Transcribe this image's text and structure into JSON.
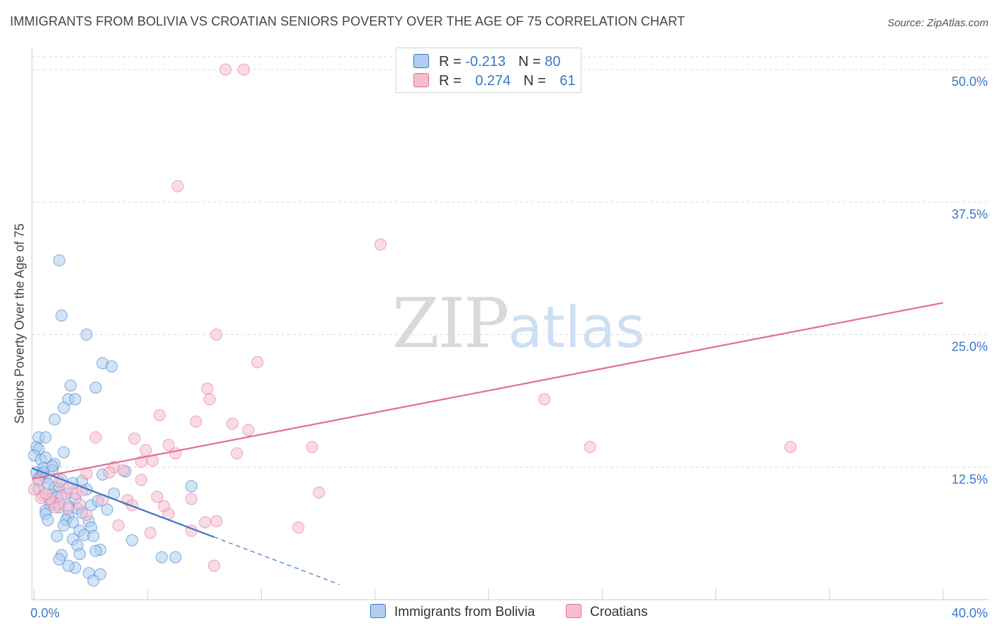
{
  "title": "IMMIGRANTS FROM BOLIVIA VS CROATIAN SENIORS POVERTY OVER THE AGE OF 75 CORRELATION CHART",
  "source": "Source: ZipAtlas.com",
  "watermark": {
    "zip": "ZIP",
    "atlas": "atlas"
  },
  "colors": {
    "blue": "#3a78c9",
    "blue_fill": "#aecdf0",
    "pink": "#e26e96",
    "pink_fill": "#f6bdd0",
    "grid": "#dddddd",
    "tick_label": "#3a78c9"
  },
  "legend": {
    "rows": [
      {
        "r_label": "R = ",
        "r_value": "-0.213",
        "n_label": "N = ",
        "n_value": "80"
      },
      {
        "r_label": "R = ",
        "r_value": "0.274",
        "n_label": "N = ",
        "n_value": "61"
      }
    ]
  },
  "chart_data": {
    "type": "scatter",
    "title": "IMMIGRANTS FROM BOLIVIA VS CROATIAN SENIORS POVERTY OVER THE AGE OF 75 CORRELATION CHART",
    "xlabel": "",
    "ylabel": "Seniors Poverty Over the Age of 75",
    "xlim": [
      0,
      40
    ],
    "ylim": [
      0,
      50
    ],
    "x_tick_labels": [
      "0.0%",
      "40.0%"
    ],
    "y_ticks": [
      12.5,
      25.0,
      37.5,
      50.0
    ],
    "y_tick_labels": [
      "12.5%",
      "25.0%",
      "37.5%",
      "50.0%"
    ],
    "grid": true,
    "legend_position": "top-center",
    "series": [
      {
        "name": "Immigrants from Bolivia",
        "color": "#3a78c9",
        "r": -0.213,
        "n": 80,
        "trend": {
          "x0": 0,
          "y0": 12.4,
          "x1": 8,
          "y1": 5.9,
          "dash_to_x": 13.5
        },
        "points": [
          [
            1.2,
            32.0
          ],
          [
            1.3,
            26.8
          ],
          [
            2.4,
            25.0
          ],
          [
            3.1,
            22.3
          ],
          [
            3.5,
            22.0
          ],
          [
            1.7,
            20.2
          ],
          [
            2.8,
            20.0
          ],
          [
            1.6,
            18.9
          ],
          [
            1.9,
            18.9
          ],
          [
            1.4,
            18.1
          ],
          [
            1.0,
            17.0
          ],
          [
            0.3,
            15.3
          ],
          [
            0.6,
            15.3
          ],
          [
            0.2,
            14.4
          ],
          [
            0.3,
            14.2
          ],
          [
            1.4,
            13.9
          ],
          [
            0.1,
            13.6
          ],
          [
            0.4,
            13.2
          ],
          [
            0.6,
            13.4
          ],
          [
            1.0,
            12.8
          ],
          [
            0.5,
            12.4
          ],
          [
            0.9,
            12.2
          ],
          [
            0.2,
            12.0
          ],
          [
            0.4,
            11.8
          ],
          [
            0.6,
            11.5
          ],
          [
            0.3,
            11.4
          ],
          [
            3.1,
            11.8
          ],
          [
            4.1,
            12.1
          ],
          [
            1.8,
            11.0
          ],
          [
            0.7,
            10.9
          ],
          [
            1.0,
            10.6
          ],
          [
            0.3,
            10.4
          ],
          [
            1.2,
            10.5
          ],
          [
            2.4,
            10.4
          ],
          [
            3.6,
            10.0
          ],
          [
            1.5,
            10.0
          ],
          [
            0.9,
            9.9
          ],
          [
            1.1,
            9.7
          ],
          [
            1.9,
            9.5
          ],
          [
            0.8,
            8.9
          ],
          [
            1.2,
            8.7
          ],
          [
            1.6,
            8.8
          ],
          [
            2.0,
            8.6
          ],
          [
            2.6,
            8.9
          ],
          [
            0.6,
            8.4
          ],
          [
            3.3,
            8.5
          ],
          [
            2.2,
            8.2
          ],
          [
            0.6,
            8.1
          ],
          [
            1.6,
            7.9
          ],
          [
            0.7,
            7.5
          ],
          [
            1.5,
            7.5
          ],
          [
            2.5,
            7.4
          ],
          [
            1.8,
            7.3
          ],
          [
            1.4,
            7.0
          ],
          [
            2.6,
            6.8
          ],
          [
            2.1,
            6.5
          ],
          [
            2.3,
            6.1
          ],
          [
            2.7,
            6.0
          ],
          [
            1.1,
            6.0
          ],
          [
            1.8,
            5.7
          ],
          [
            4.4,
            5.6
          ],
          [
            2.0,
            5.1
          ],
          [
            3.0,
            4.7
          ],
          [
            2.8,
            4.6
          ],
          [
            1.3,
            4.2
          ],
          [
            2.1,
            4.3
          ],
          [
            7.0,
            10.7
          ],
          [
            5.7,
            4.0
          ],
          [
            6.3,
            4.0
          ],
          [
            1.2,
            3.8
          ],
          [
            1.9,
            3.0
          ],
          [
            2.5,
            2.5
          ],
          [
            3.0,
            2.4
          ],
          [
            2.7,
            1.8
          ],
          [
            1.6,
            3.2
          ],
          [
            0.9,
            12.6
          ],
          [
            2.2,
            11.2
          ],
          [
            0.5,
            12.0
          ],
          [
            1.3,
            11.3
          ],
          [
            2.9,
            9.3
          ]
        ]
      },
      {
        "name": "Croatians",
        "color": "#e26e96",
        "r": 0.274,
        "n": 61,
        "trend": {
          "x0": 0,
          "y0": 11.4,
          "x1": 40,
          "y1": 28.0
        },
        "points": [
          [
            8.5,
            50.0
          ],
          [
            9.3,
            50.0
          ],
          [
            6.4,
            39.0
          ],
          [
            15.3,
            33.5
          ],
          [
            8.1,
            25.0
          ],
          [
            9.9,
            22.4
          ],
          [
            7.7,
            19.9
          ],
          [
            7.8,
            18.9
          ],
          [
            22.5,
            18.9
          ],
          [
            5.6,
            17.4
          ],
          [
            7.2,
            16.8
          ],
          [
            8.8,
            16.6
          ],
          [
            9.5,
            16.0
          ],
          [
            2.8,
            15.3
          ],
          [
            4.5,
            15.2
          ],
          [
            6.0,
            14.6
          ],
          [
            12.3,
            14.4
          ],
          [
            24.5,
            14.4
          ],
          [
            33.3,
            14.4
          ],
          [
            5.0,
            14.1
          ],
          [
            6.3,
            13.8
          ],
          [
            9.0,
            13.8
          ],
          [
            4.8,
            13.0
          ],
          [
            3.6,
            12.5
          ],
          [
            5.3,
            13.1
          ],
          [
            4.0,
            12.2
          ],
          [
            2.4,
            11.9
          ],
          [
            3.4,
            12.0
          ],
          [
            4.8,
            11.3
          ],
          [
            1.2,
            11.1
          ],
          [
            0.3,
            11.2
          ],
          [
            0.1,
            10.4
          ],
          [
            12.6,
            10.1
          ],
          [
            0.5,
            9.8
          ],
          [
            1.3,
            9.8
          ],
          [
            1.9,
            10.0
          ],
          [
            5.5,
            9.7
          ],
          [
            4.2,
            9.4
          ],
          [
            3.1,
            9.4
          ],
          [
            7.0,
            9.5
          ],
          [
            0.9,
            9.2
          ],
          [
            0.4,
            9.6
          ],
          [
            2.1,
            9.0
          ],
          [
            1.2,
            9.0
          ],
          [
            1.6,
            8.6
          ],
          [
            4.4,
            8.9
          ],
          [
            5.8,
            8.8
          ],
          [
            2.4,
            8.0
          ],
          [
            6.0,
            8.1
          ],
          [
            1.0,
            8.7
          ],
          [
            3.8,
            7.0
          ],
          [
            7.6,
            7.3
          ],
          [
            8.1,
            7.4
          ],
          [
            11.7,
            6.8
          ],
          [
            7.0,
            6.5
          ],
          [
            5.2,
            6.3
          ],
          [
            8.0,
            3.2
          ],
          [
            0.8,
            9.5
          ],
          [
            2.2,
            10.3
          ],
          [
            1.6,
            10.5
          ],
          [
            0.6,
            10.0
          ]
        ]
      }
    ]
  },
  "bottom_legend": [
    {
      "label": "Immigrants from Bolivia"
    },
    {
      "label": "Croatians"
    }
  ]
}
